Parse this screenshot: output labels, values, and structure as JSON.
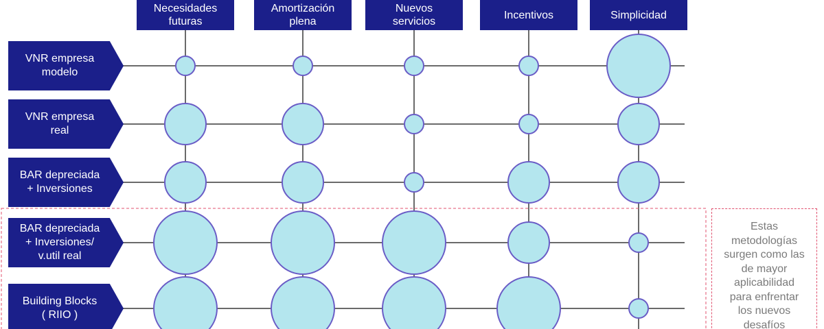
{
  "chart_data": {
    "type": "matrix",
    "columns": [
      [
        "Necesidades",
        "futuras"
      ],
      [
        "Amortización",
        "plena"
      ],
      [
        "Nuevos",
        "servicios"
      ],
      [
        "Incentivos"
      ],
      [
        "Simplicidad"
      ]
    ],
    "rows": [
      {
        "label": [
          "VNR empresa",
          "modelo"
        ],
        "values": [
          1,
          1,
          1,
          1,
          3
        ]
      },
      {
        "label": [
          "VNR empresa",
          "real"
        ],
        "values": [
          2,
          2,
          1,
          1,
          2
        ]
      },
      {
        "label": [
          "BAR depreciada",
          "+ Inversiones"
        ],
        "values": [
          2,
          2,
          1,
          2,
          2
        ]
      },
      {
        "label": [
          "BAR depreciada",
          "+ Inversiones/",
          "v.util real"
        ],
        "values": [
          3,
          3,
          3,
          2,
          1
        ]
      },
      {
        "label": [
          "Building Blocks",
          "( RIIO )"
        ],
        "values": [
          3,
          3,
          3,
          3,
          1
        ]
      }
    ],
    "note": [
      "Estas",
      "metodologías",
      "surgen como las",
      "de mayor",
      "aplicabilidad",
      "para enfrentar",
      "los nuevos",
      "desafíos"
    ],
    "color": "#b4e6ee",
    "stroke": "#6a5cc6",
    "header_color": "#1b1f8a"
  }
}
